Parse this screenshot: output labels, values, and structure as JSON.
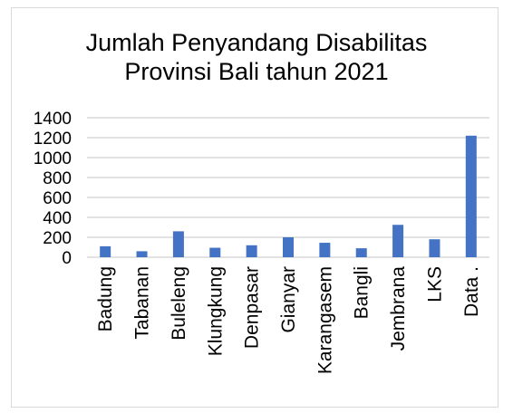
{
  "chart_data": {
    "type": "bar",
    "title": [
      "Jumlah Penyandang Disabilitas",
      "Provinsi Bali tahun 2021"
    ],
    "categories": [
      "Badung",
      "Tabanan",
      "Buleleng",
      "Klungkung",
      "Denpasar",
      "Gianyar",
      "Karangasem",
      "Bangli",
      "Jembrana",
      "LKS",
      "Data ."
    ],
    "values": [
      110,
      60,
      260,
      95,
      120,
      200,
      145,
      90,
      325,
      180,
      1220
    ],
    "xlabel": "",
    "ylabel": "",
    "ylim": [
      0,
      1400
    ],
    "yticks": [
      0,
      200,
      400,
      600,
      800,
      1000,
      1200,
      1400
    ],
    "grid": true,
    "legend": "none",
    "bar_color": "#4472c4",
    "grid_color": "#d9d9d9"
  }
}
